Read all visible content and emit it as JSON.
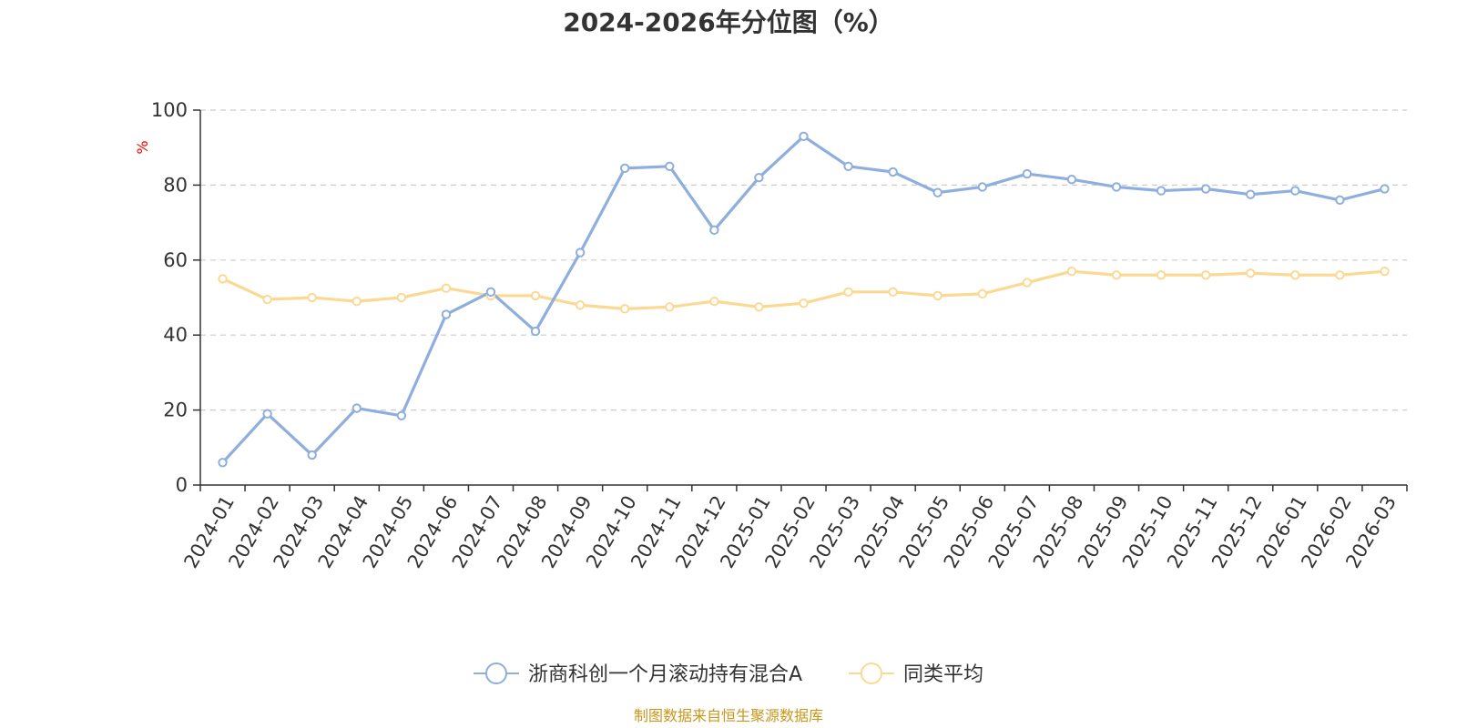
{
  "chart_data": {
    "type": "line",
    "title": "2024-2026年分位图（%）",
    "ylabel": "%",
    "xlabel": "",
    "ylim": [
      0,
      100
    ],
    "yticks": [
      0,
      20,
      40,
      60,
      80,
      100
    ],
    "grid": true,
    "legend_position": "bottom",
    "categories": [
      "2024-01",
      "2024-02",
      "2024-03",
      "2024-04",
      "2024-05",
      "2024-06",
      "2024-07",
      "2024-08",
      "2024-09",
      "2024-10",
      "2024-11",
      "2024-12",
      "2025-01",
      "2025-02",
      "2025-03",
      "2025-04",
      "2025-05",
      "2025-06",
      "2025-07",
      "2025-08",
      "2025-09",
      "2025-10",
      "2025-11",
      "2025-12",
      "2026-01",
      "2026-02",
      "2026-03"
    ],
    "series": [
      {
        "name": "浙商科创一个月滚动持有混合A",
        "color": "#8eaede",
        "values": [
          6,
          19,
          8,
          20.5,
          18.5,
          45.5,
          51.5,
          41,
          62,
          84.5,
          85,
          68,
          82,
          93,
          85,
          83.5,
          78,
          79.5,
          83,
          81.5,
          79.5,
          78.5,
          79,
          77.5,
          78.5,
          76,
          79
        ]
      },
      {
        "name": "同类平均",
        "color": "#fcd993",
        "values": [
          55,
          49.5,
          50,
          49,
          50,
          52.5,
          50.5,
          50.5,
          48,
          47,
          47.5,
          49,
          47.5,
          48.5,
          51.5,
          51.5,
          50.5,
          51,
          54,
          57,
          56,
          56,
          56,
          56.5,
          56,
          56,
          57
        ]
      }
    ]
  },
  "source_note": "制图数据来自恒生聚源数据库"
}
